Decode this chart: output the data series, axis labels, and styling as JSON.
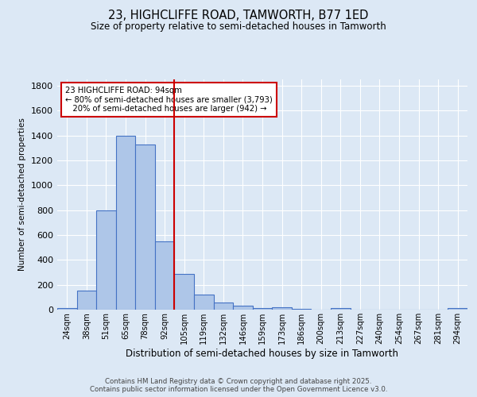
{
  "title1": "23, HIGHCLIFFE ROAD, TAMWORTH, B77 1ED",
  "title2": "Size of property relative to semi-detached houses in Tamworth",
  "xlabel": "Distribution of semi-detached houses by size in Tamworth",
  "ylabel": "Number of semi-detached properties",
  "categories": [
    "24sqm",
    "38sqm",
    "51sqm",
    "65sqm",
    "78sqm",
    "92sqm",
    "105sqm",
    "119sqm",
    "132sqm",
    "146sqm",
    "159sqm",
    "173sqm",
    "186sqm",
    "200sqm",
    "213sqm",
    "227sqm",
    "240sqm",
    "254sqm",
    "267sqm",
    "281sqm",
    "294sqm"
  ],
  "values": [
    15,
    150,
    800,
    1400,
    1330,
    550,
    290,
    120,
    55,
    30,
    15,
    20,
    5,
    0,
    15,
    0,
    0,
    0,
    0,
    0,
    10
  ],
  "bar_color": "#aec6e8",
  "bar_edge_color": "#4472c4",
  "bg_color": "#dce8f5",
  "grid_color": "#ffffff",
  "vline_x": 5.5,
  "vline_color": "#cc0000",
  "annotation_text": "23 HIGHCLIFFE ROAD: 94sqm\n← 80% of semi-detached houses are smaller (3,793)\n   20% of semi-detached houses are larger (942) →",
  "annotation_box_color": "#ffffff",
  "annotation_box_edge": "#cc0000",
  "ylim": [
    0,
    1850
  ],
  "yticks": [
    0,
    200,
    400,
    600,
    800,
    1000,
    1200,
    1400,
    1600,
    1800
  ],
  "footer1": "Contains HM Land Registry data © Crown copyright and database right 2025.",
  "footer2": "Contains public sector information licensed under the Open Government Licence v3.0."
}
